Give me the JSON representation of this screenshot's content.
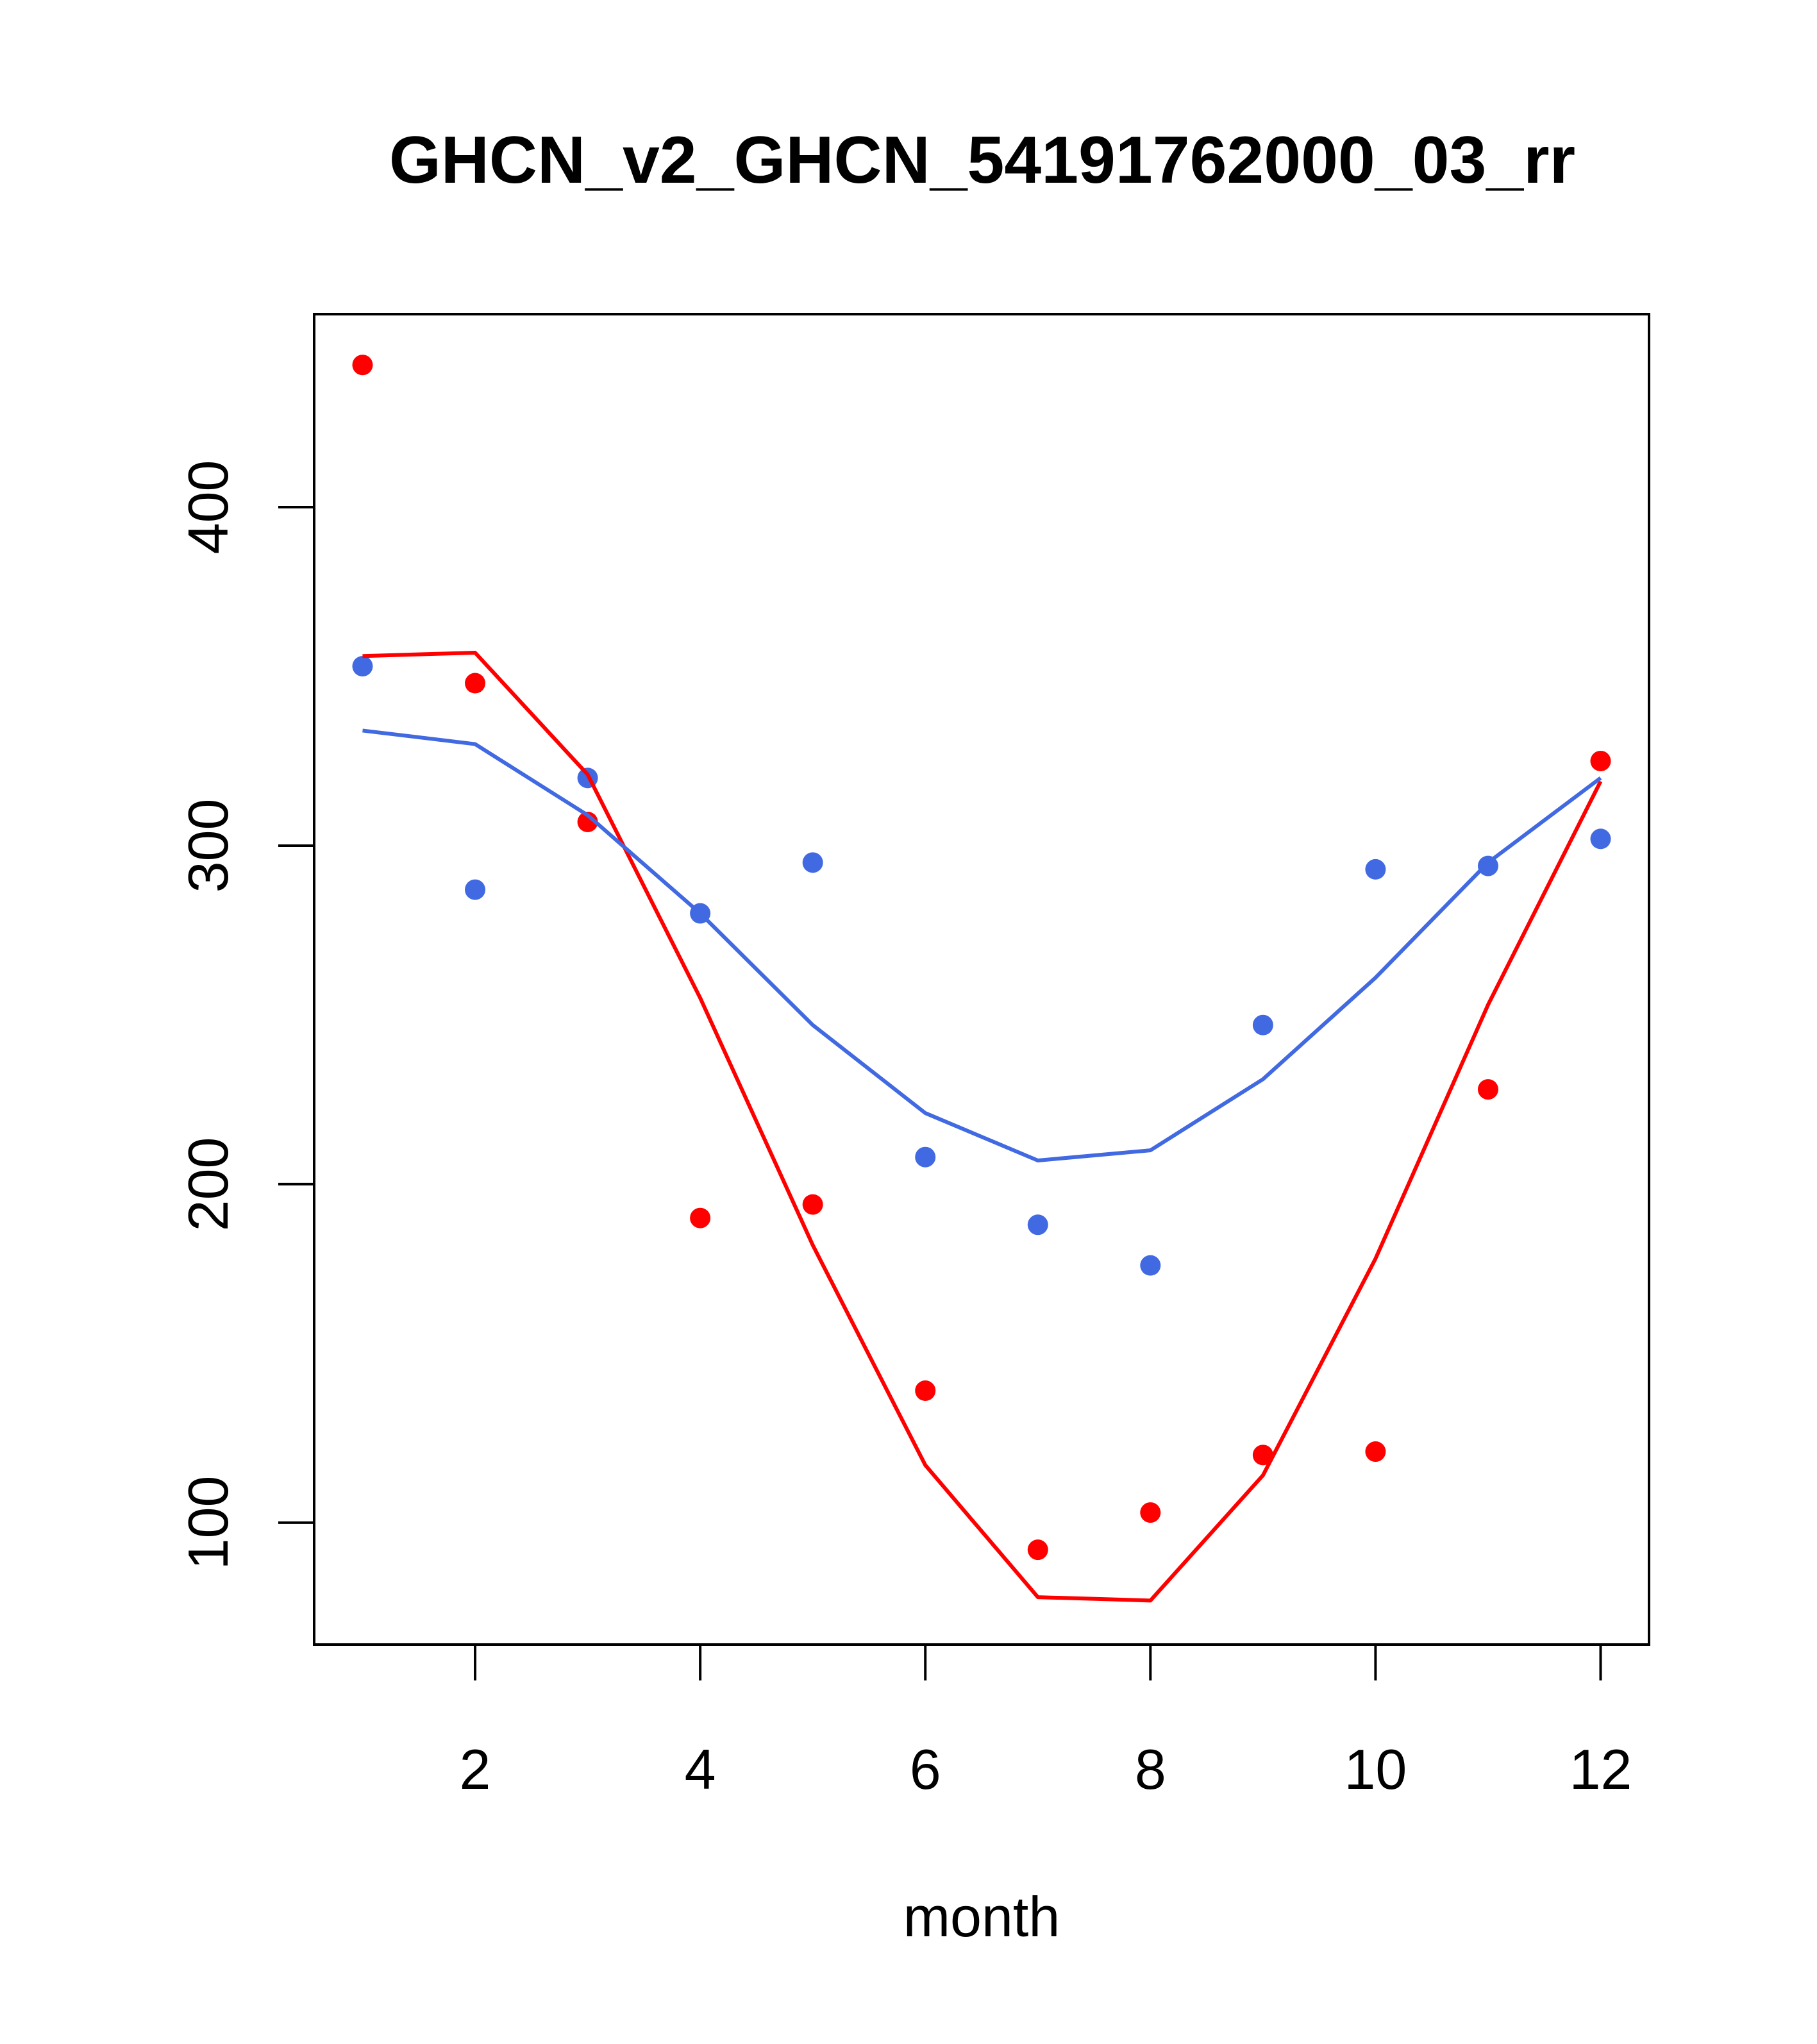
{
  "chart_data": {
    "type": "line",
    "title": "GHCN_v2_GHCN_54191762000_03_rr",
    "xlabel": "month",
    "ylabel": "",
    "xlim": [
      0.57,
      12.43
    ],
    "ylim": [
      64,
      457
    ],
    "x_ticks": [
      2,
      4,
      6,
      8,
      10,
      12
    ],
    "y_ticks": [
      100,
      200,
      300,
      400
    ],
    "grid": false,
    "legend": "none",
    "series": [
      {
        "kind": "points",
        "color": "#ff0000",
        "x": [
          1,
          2,
          3,
          4,
          5,
          6,
          7,
          8,
          9,
          10,
          11,
          12
        ],
        "y": [
          442,
          348,
          307,
          190,
          194,
          139,
          92,
          103,
          120,
          121,
          228,
          325
        ]
      },
      {
        "kind": "points",
        "color": "#4169e1",
        "x": [
          1,
          2,
          3,
          4,
          5,
          6,
          7,
          8,
          9,
          10,
          11,
          12
        ],
        "y": [
          353,
          287,
          320,
          280,
          295,
          208,
          188,
          176,
          247,
          293,
          294,
          302
        ]
      },
      {
        "kind": "line",
        "color": "#ff0000",
        "x": [
          1,
          2,
          3,
          4,
          5,
          6,
          7,
          8,
          9,
          10,
          11,
          12
        ],
        "y": [
          356,
          357,
          321,
          255,
          182,
          117,
          78,
          77,
          114,
          178,
          253,
          319
        ]
      },
      {
        "kind": "line",
        "color": "#4169e1",
        "x": [
          1,
          2,
          3,
          4,
          5,
          6,
          7,
          8,
          9,
          10,
          11,
          12
        ],
        "y": [
          334,
          330,
          309,
          280,
          247,
          221,
          207,
          210,
          231,
          261,
          295,
          320
        ]
      }
    ]
  }
}
